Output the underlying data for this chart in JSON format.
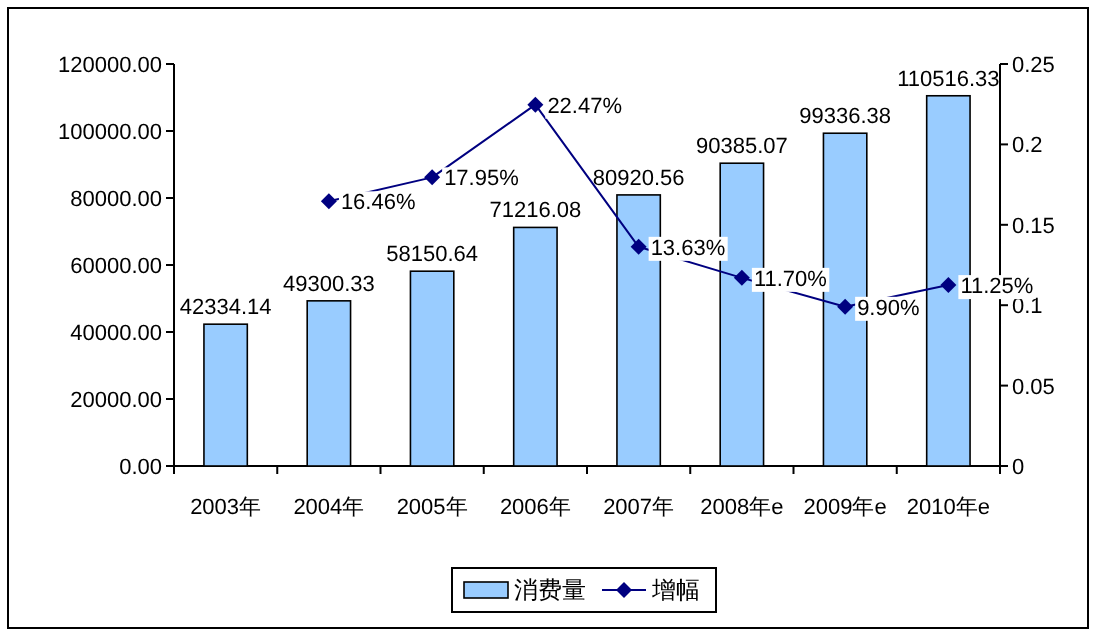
{
  "chart_data": {
    "type": "bar",
    "categories": [
      "2003年",
      "2004年",
      "2005年",
      "2006年",
      "2007年",
      "2008年e",
      "2009年e",
      "2010年e"
    ],
    "series": [
      {
        "name": "消费量",
        "color": "#99ccff",
        "values": [
          42334.14,
          49300.33,
          58150.64,
          71216.08,
          80920.56,
          90385.07,
          99336.38,
          110516.33
        ],
        "value_labels": [
          "42334.14",
          "49300.33",
          "58150.64",
          "71216.08",
          "80920.56",
          "90385.07",
          "99336.38",
          "110516.33"
        ]
      },
      {
        "name": "增幅",
        "type": "line",
        "axis": "y2",
        "color": "#000080",
        "marker": "diamond",
        "values": [
          null,
          0.1646,
          0.1795,
          0.2247,
          0.1363,
          0.117,
          0.099,
          0.1125
        ],
        "value_labels": [
          null,
          "16.46%",
          "17.95%",
          "22.47%",
          "13.63%",
          "11.70%",
          "9.90%",
          "11.25%"
        ]
      }
    ],
    "ylim": [
      0,
      120000
    ],
    "yticks": [
      {
        "value": 0,
        "label": "0.00"
      },
      {
        "value": 20000,
        "label": "20000.00"
      },
      {
        "value": 40000,
        "label": "40000.00"
      },
      {
        "value": 60000,
        "label": "60000.00"
      },
      {
        "value": 80000,
        "label": "80000.00"
      },
      {
        "value": 100000,
        "label": "100000.00"
      },
      {
        "value": 120000,
        "label": "120000.00"
      }
    ],
    "y2lim": [
      0,
      0.25
    ],
    "y2ticks": [
      0,
      0.05,
      0.1,
      0.15,
      0.2,
      0.25
    ],
    "grid": false,
    "legend": "bottom"
  }
}
